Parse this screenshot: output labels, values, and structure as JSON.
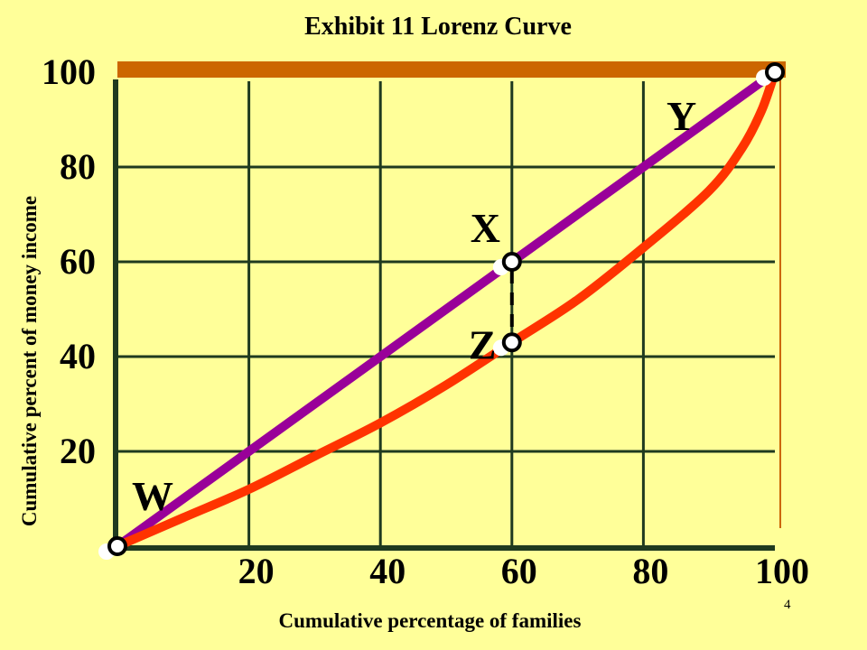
{
  "slide": {
    "title": "Exhibit 11 Lorenz Curve",
    "page_number": "4"
  },
  "colors": {
    "background": "#FFFF99",
    "grid": "#1F3A1F",
    "equality_line": "#990099",
    "lorenz_curve": "#FF3300",
    "top_bar": "#CC6600",
    "marker_fill": "#FFFFFF"
  },
  "chart_data": {
    "type": "line",
    "title": "Exhibit 11 Lorenz Curve",
    "xlabel": "Cumulative percentage of families",
    "ylabel": "Cumulative percent of money income",
    "xlim": [
      0,
      100
    ],
    "ylim": [
      0,
      100
    ],
    "x_ticks": [
      "20",
      "40",
      "60",
      "80",
      "100"
    ],
    "y_ticks": [
      "20",
      "40",
      "60",
      "80",
      "100"
    ],
    "grid": true,
    "legend": "none",
    "series": [
      {
        "color": "#990099",
        "x": [
          0,
          100
        ],
        "y": [
          0,
          100
        ]
      },
      {
        "color": "#FF3300",
        "x": [
          0,
          10,
          20,
          30,
          40,
          50,
          60,
          70,
          80,
          90,
          95,
          98,
          100
        ],
        "y": [
          0,
          6,
          12,
          19,
          26,
          34,
          43,
          52,
          63,
          75,
          84,
          92,
          100
        ]
      }
    ],
    "points": [
      {
        "label": "W",
        "x": 0,
        "y": 0
      },
      {
        "label": "X",
        "x": 60,
        "y": 60
      },
      {
        "label": "Y",
        "x": 100,
        "y": 100
      },
      {
        "label": "Z",
        "x": 60,
        "y": 43
      }
    ],
    "annotations": [
      "dashed vertical segment from X down to Z at x = 60"
    ]
  }
}
